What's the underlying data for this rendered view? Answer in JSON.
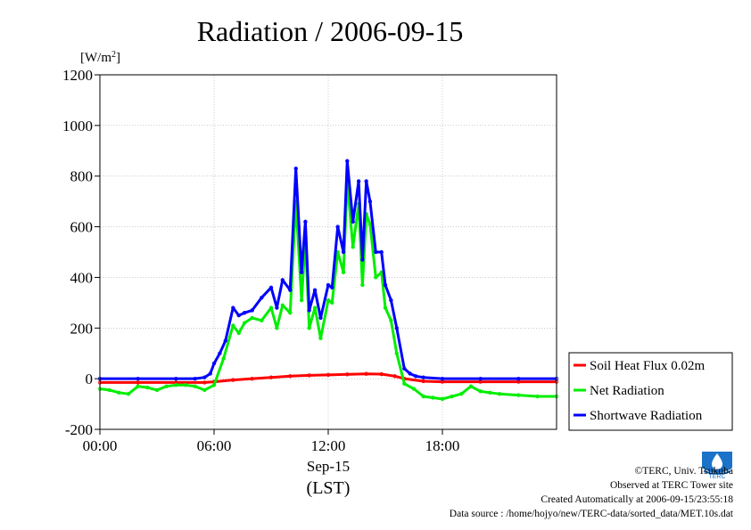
{
  "chart_data": {
    "type": "line",
    "title": "Radiation / 2006-09-15",
    "ylabel_unit": "[W/m",
    "ylabel_sup": "2",
    "ylabel_close": "]",
    "ylim": [
      -200,
      1200
    ],
    "yticks": [
      -200,
      0,
      200,
      400,
      600,
      800,
      1000,
      1200
    ],
    "xlim": [
      0,
      24
    ],
    "xticks": [
      0,
      6,
      12,
      18
    ],
    "xtick_labels": [
      "00:00",
      "06:00",
      "12:00",
      "18:00"
    ],
    "xlabel_date": "Sep-15",
    "xlabel_tz": "(LST)",
    "grid": true,
    "legend_position": "right",
    "series": [
      {
        "name": "Soil Heat Flux 0.02m",
        "color": "#ff0000",
        "x": [
          0,
          2,
          4,
          5.5,
          6,
          7,
          8,
          9,
          10,
          11,
          12,
          13,
          14,
          14.8,
          15.5,
          16,
          17,
          18,
          20,
          22,
          24
        ],
        "y": [
          -15,
          -15,
          -15,
          -15,
          -12,
          -5,
          0,
          5,
          10,
          13,
          15,
          17,
          19,
          18,
          10,
          0,
          -10,
          -12,
          -12,
          -12,
          -12
        ]
      },
      {
        "name": "Net Radiation",
        "color": "#00ee00",
        "x": [
          0,
          0.5,
          1,
          1.5,
          2,
          2.5,
          3,
          3.5,
          4,
          4.5,
          5,
          5.5,
          6,
          6.5,
          7,
          7.3,
          7.6,
          8,
          8.5,
          9,
          9.3,
          9.6,
          10,
          10.3,
          10.6,
          10.8,
          11,
          11.3,
          11.6,
          12,
          12.2,
          12.5,
          12.8,
          13,
          13.3,
          13.6,
          13.8,
          14,
          14.2,
          14.5,
          14.8,
          15,
          15.3,
          15.6,
          16,
          16.5,
          17,
          17.5,
          18,
          18.5,
          19,
          19.5,
          20,
          20.5,
          21,
          22,
          23,
          24
        ],
        "y": [
          -40,
          -45,
          -55,
          -60,
          -30,
          -35,
          -45,
          -30,
          -25,
          -25,
          -30,
          -45,
          -25,
          80,
          210,
          180,
          220,
          240,
          230,
          280,
          200,
          290,
          260,
          700,
          310,
          550,
          200,
          280,
          160,
          310,
          300,
          500,
          420,
          780,
          520,
          690,
          370,
          650,
          610,
          400,
          420,
          280,
          230,
          100,
          -20,
          -40,
          -70,
          -75,
          -80,
          -70,
          -60,
          -30,
          -50,
          -55,
          -60,
          -65,
          -70,
          -70
        ]
      },
      {
        "name": "Shortwave Radiation",
        "color": "#0000ff",
        "x": [
          0,
          2,
          4,
          5,
          5.5,
          5.8,
          6,
          6.3,
          6.6,
          7,
          7.3,
          7.6,
          8,
          8.5,
          9,
          9.3,
          9.6,
          10,
          10.3,
          10.6,
          10.8,
          11,
          11.3,
          11.6,
          12,
          12.2,
          12.5,
          12.8,
          13,
          13.3,
          13.6,
          13.8,
          14,
          14.2,
          14.5,
          14.8,
          15,
          15.3,
          15.6,
          16,
          16.3,
          16.6,
          17,
          18,
          20,
          22,
          24
        ],
        "y": [
          0,
          0,
          0,
          0,
          5,
          20,
          60,
          100,
          150,
          280,
          250,
          260,
          270,
          320,
          360,
          280,
          390,
          350,
          830,
          420,
          620,
          270,
          350,
          240,
          370,
          360,
          600,
          500,
          860,
          620,
          780,
          470,
          780,
          700,
          500,
          500,
          370,
          310,
          200,
          40,
          20,
          10,
          5,
          0,
          0,
          0,
          0
        ]
      }
    ]
  },
  "footer": {
    "copyright": "©TERC, Univ. Tsukuba",
    "observed": "Observed at TERC Tower site",
    "created": "Created Automatically at 2006-09-15/23:55:18",
    "source": "Data source : /home/hojyo/new/TERC-data/sorted_data/MET.10s.dat"
  },
  "logo_text": "TERC"
}
